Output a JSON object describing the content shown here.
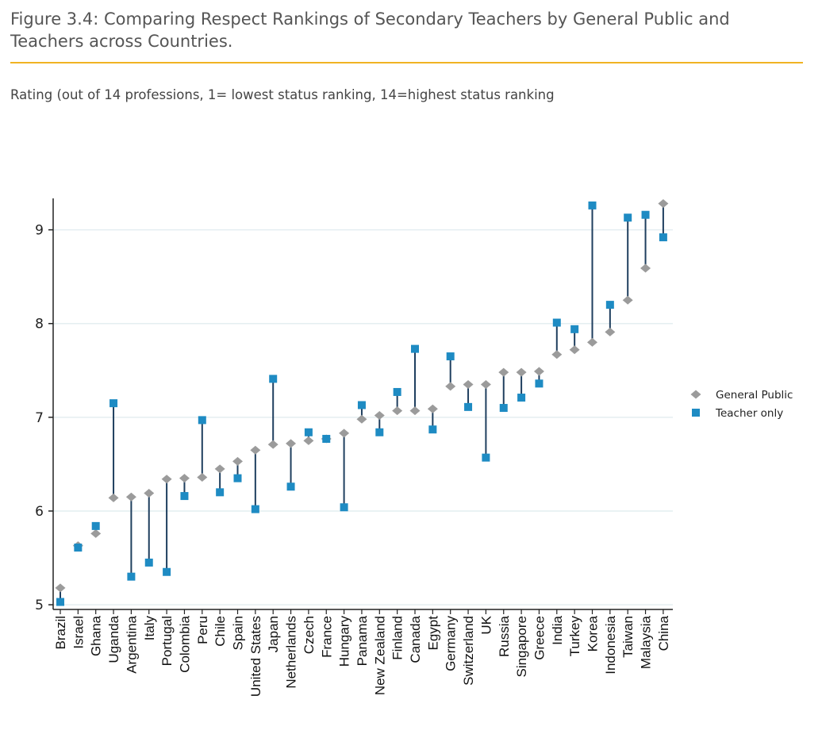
{
  "title": "Figure 3.4: Comparing Respect Rankings of Secondary Teachers by General Public and Teachers across Countries.",
  "subtitle": "Rating (out of 14 professions, 1= lowest status ranking, 14=highest status ranking",
  "colors": {
    "general_public": "#9b9b9b",
    "teacher_only": "#1e8bc3",
    "connector": "#1f3f5f",
    "grid": "#e4eef1",
    "axis": "#222222",
    "title_rule": "#f0b323"
  },
  "chart_data": {
    "type": "scatter",
    "style": "dumbbell",
    "categories": [
      "Brazil",
      "Israel",
      "Ghana",
      "Uganda",
      "Argentina",
      "Italy",
      "Portugal",
      "Colombia",
      "Peru",
      "Chile",
      "Spain",
      "United States",
      "Japan",
      "Netherlands",
      "Czech",
      "France",
      "Hungary",
      "Panama",
      "New Zealand",
      "Finland",
      "Canada",
      "Egypt",
      "Germany",
      "Switzerland",
      "UK",
      "Russia",
      "Singapore",
      "Greece",
      "India",
      "Turkey",
      "Korea",
      "Indonesia",
      "Taiwan",
      "Malaysia",
      "China"
    ],
    "series": [
      {
        "name": "General Public",
        "marker": "diamond",
        "values": [
          5.18,
          5.63,
          5.76,
          6.14,
          6.15,
          6.19,
          6.34,
          6.35,
          6.36,
          6.45,
          6.53,
          6.65,
          6.71,
          6.72,
          6.75,
          6.77,
          6.83,
          6.98,
          7.02,
          7.07,
          7.07,
          7.09,
          7.33,
          7.35,
          7.35,
          7.48,
          7.48,
          7.49,
          7.67,
          7.72,
          7.8,
          7.91,
          8.25,
          8.59,
          9.28
        ]
      },
      {
        "name": "Teacher only",
        "marker": "square",
        "values": [
          5.03,
          5.61,
          5.84,
          7.15,
          5.3,
          5.45,
          5.35,
          6.16,
          6.97,
          6.2,
          6.35,
          6.02,
          7.41,
          6.26,
          6.84,
          6.77,
          6.04,
          7.13,
          6.84,
          7.27,
          7.73,
          6.87,
          7.65,
          7.11,
          6.57,
          7.1,
          7.21,
          7.36,
          8.01,
          7.94,
          9.26,
          8.2,
          9.13,
          9.16,
          8.92
        ]
      }
    ],
    "yticks": [
      5,
      6,
      7,
      8,
      9
    ],
    "ylim": [
      4.95,
      9.42
    ],
    "grid": true,
    "legend": "right"
  }
}
